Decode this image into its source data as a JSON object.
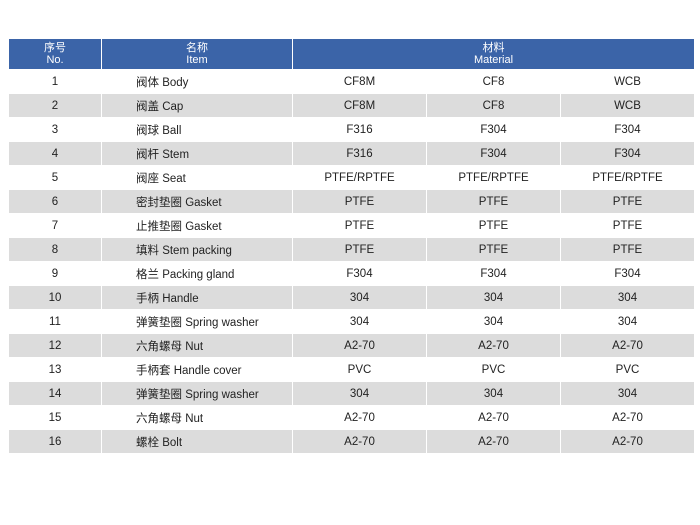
{
  "header": {
    "no_cn": "序号",
    "no_en": "No.",
    "item_cn": "名称",
    "item_en": "Item",
    "material_cn": "材料",
    "material_en": "Material"
  },
  "rows": [
    {
      "no": "1",
      "item": "阀体 Body",
      "m1": "CF8M",
      "m2": "CF8",
      "m3": "WCB"
    },
    {
      "no": "2",
      "item": "阀盖 Cap",
      "m1": "CF8M",
      "m2": "CF8",
      "m3": "WCB"
    },
    {
      "no": "3",
      "item": "阀球 Ball",
      "m1": "F316",
      "m2": "F304",
      "m3": "F304"
    },
    {
      "no": "4",
      "item": "阀杆 Stem",
      "m1": "F316",
      "m2": "F304",
      "m3": "F304"
    },
    {
      "no": "5",
      "item": "阀座 Seat",
      "m1": "PTFE/RPTFE",
      "m2": "PTFE/RPTFE",
      "m3": "PTFE/RPTFE"
    },
    {
      "no": "6",
      "item": "密封垫圈 Gasket",
      "m1": "PTFE",
      "m2": "PTFE",
      "m3": "PTFE"
    },
    {
      "no": "7",
      "item": "止推垫圈 Gasket",
      "m1": "PTFE",
      "m2": "PTFE",
      "m3": "PTFE"
    },
    {
      "no": "8",
      "item": "填料 Stem packing",
      "m1": "PTFE",
      "m2": "PTFE",
      "m3": "PTFE"
    },
    {
      "no": "9",
      "item": "格兰 Packing gland",
      "m1": "F304",
      "m2": "F304",
      "m3": "F304"
    },
    {
      "no": "10",
      "item": "手柄 Handle",
      "m1": "304",
      "m2": "304",
      "m3": "304"
    },
    {
      "no": "11",
      "item": "弹簧垫圈 Spring washer",
      "m1": "304",
      "m2": "304",
      "m3": "304"
    },
    {
      "no": "12",
      "item": "六角螺母 Nut",
      "m1": "A2-70",
      "m2": "A2-70",
      "m3": "A2-70"
    },
    {
      "no": "13",
      "item": "手柄套 Handle cover",
      "m1": "PVC",
      "m2": "PVC",
      "m3": "PVC"
    },
    {
      "no": "14",
      "item": "弹簧垫圈 Spring washer",
      "m1": "304",
      "m2": "304",
      "m3": "304"
    },
    {
      "no": "15",
      "item": "六角螺母 Nut",
      "m1": "A2-70",
      "m2": "A2-70",
      "m3": "A2-70"
    },
    {
      "no": "16",
      "item": "螺栓 Bolt",
      "m1": "A2-70",
      "m2": "A2-70",
      "m3": "A2-70"
    }
  ],
  "colors": {
    "header_bg": "#3b64a8",
    "header_text": "#ffffff",
    "row_alt_bg": "#dcdcdc"
  }
}
